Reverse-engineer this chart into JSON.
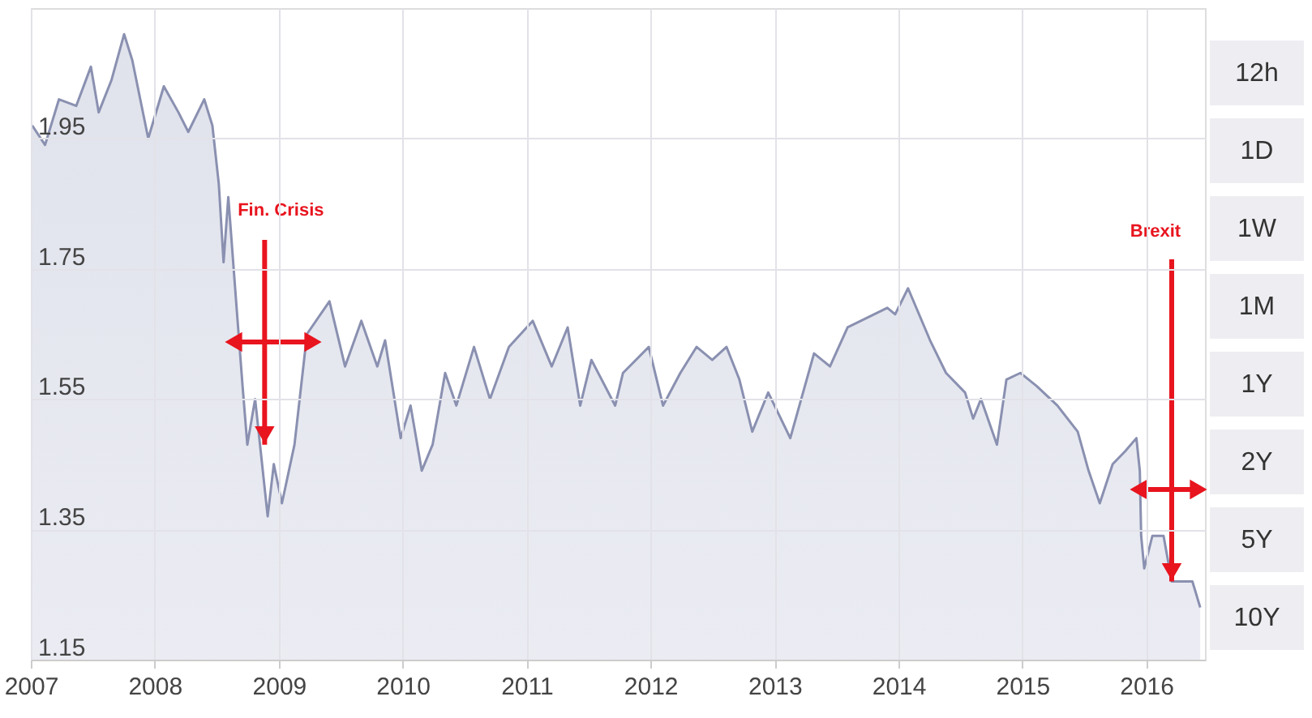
{
  "chart_data": {
    "type": "area",
    "x": [
      "2007-01-05",
      "2007-02-12",
      "2007-03-25",
      "2007-05-15",
      "2007-06-27",
      "2007-07-20",
      "2007-08-27",
      "2007-10-03",
      "2007-10-27",
      "2007-12-13",
      "2008-01-28",
      "2008-03-11",
      "2008-04-09",
      "2008-05-26",
      "2008-06-19",
      "2008-07-08",
      "2008-07-22",
      "2008-08-05",
      "2008-08-28",
      "2008-09-16",
      "2008-09-30",
      "2008-10-23",
      "2008-11-29",
      "2008-12-17",
      "2009-01-10",
      "2009-02-16",
      "2009-03-25",
      "2009-05-30",
      "2009-07-15",
      "2009-09-01",
      "2009-10-18",
      "2009-11-10",
      "2009-12-26",
      "2010-01-24",
      "2010-02-26",
      "2010-03-30",
      "2010-05-06",
      "2010-06-08",
      "2010-07-30",
      "2010-09-15",
      "2010-11-10",
      "2011-01-19",
      "2011-03-16",
      "2011-05-02",
      "2011-06-08",
      "2011-07-11",
      "2011-09-19",
      "2011-10-12",
      "2011-12-27",
      "2012-02-07",
      "2012-03-29",
      "2012-05-16",
      "2012-07-01",
      "2012-08-12",
      "2012-09-19",
      "2012-10-27",
      "2012-12-13",
      "2013-02-16",
      "2013-04-27",
      "2013-06-13",
      "2013-08-04",
      "2013-11-29",
      "2013-12-22",
      "2014-01-29",
      "2014-04-04",
      "2014-05-21",
      "2014-07-16",
      "2014-08-09",
      "2014-09-01",
      "2014-10-18",
      "2014-11-15",
      "2014-12-26",
      "2015-02-12",
      "2015-04-14",
      "2015-06-13",
      "2015-07-15",
      "2015-08-17",
      "2015-09-24",
      "2015-10-31",
      "2015-12-03",
      "2015-12-13",
      "2015-12-17",
      "2015-12-26",
      "2016-01-19",
      "2016-02-21",
      "2016-03-16",
      "2016-05-16",
      "2016-06-08"
    ],
    "series": [
      {
        "color": "#8a90b0",
        "values": [
          1.97,
          1.94,
          2.01,
          2.0,
          2.06,
          1.99,
          2.04,
          2.11,
          2.07,
          1.95,
          2.03,
          1.99,
          1.96,
          2.01,
          1.97,
          1.88,
          1.76,
          1.86,
          1.7,
          1.57,
          1.48,
          1.55,
          1.37,
          1.45,
          1.39,
          1.48,
          1.65,
          1.7,
          1.6,
          1.67,
          1.6,
          1.64,
          1.49,
          1.54,
          1.44,
          1.48,
          1.59,
          1.54,
          1.63,
          1.55,
          1.63,
          1.67,
          1.6,
          1.66,
          1.54,
          1.61,
          1.54,
          1.59,
          1.63,
          1.54,
          1.59,
          1.63,
          1.61,
          1.63,
          1.58,
          1.5,
          1.56,
          1.49,
          1.62,
          1.6,
          1.66,
          1.69,
          1.68,
          1.72,
          1.64,
          1.59,
          1.56,
          1.52,
          1.55,
          1.48,
          1.58,
          1.59,
          1.57,
          1.54,
          1.5,
          1.44,
          1.39,
          1.45,
          1.47,
          1.49,
          1.44,
          1.34,
          1.29,
          1.34,
          1.34,
          1.27,
          1.27,
          1.23
        ]
      }
    ],
    "xlim": [
      "2007-01-01",
      "2016-06-22"
    ],
    "xticks": [
      {
        "value": "2007-01-01",
        "label": "2007"
      },
      {
        "value": "2008-01-01",
        "label": "2008"
      },
      {
        "value": "2009-01-01",
        "label": "2009"
      },
      {
        "value": "2010-01-01",
        "label": "2010"
      },
      {
        "value": "2011-01-01",
        "label": "2011"
      },
      {
        "value": "2012-01-01",
        "label": "2012"
      },
      {
        "value": "2013-01-01",
        "label": "2013"
      },
      {
        "value": "2014-01-01",
        "label": "2014"
      },
      {
        "value": "2015-01-01",
        "label": "2015"
      },
      {
        "value": "2016-01-01",
        "label": "2016"
      }
    ],
    "ylim": [
      1.15,
      2.15
    ],
    "yticks": [
      1.15,
      1.35,
      1.55,
      1.75,
      1.95
    ],
    "grid": true,
    "annotations": [
      {
        "text": "Fin. Crisis",
        "x": "2008-11-20",
        "y": 1.48
      },
      {
        "text": "Brexit",
        "x": "2016-03-16",
        "y": 1.27
      },
      "12h",
      "1D",
      "1W",
      "1M",
      "1Y",
      "2Y",
      "5Y",
      "10Y"
    ]
  }
}
